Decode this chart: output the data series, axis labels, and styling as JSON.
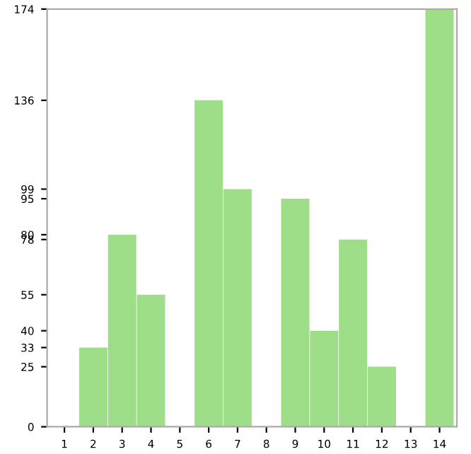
{
  "chart_data": {
    "type": "bar",
    "categories": [
      "1",
      "2",
      "3",
      "4",
      "5",
      "6",
      "7",
      "8",
      "9",
      "10",
      "11",
      "12",
      "13",
      "14"
    ],
    "values": [
      0,
      33,
      80,
      55,
      0,
      136,
      99,
      0,
      95,
      40,
      78,
      25,
      0,
      174
    ],
    "color": "#9ede88",
    "ylim": [
      0,
      174
    ],
    "yticks": [
      0,
      25,
      33,
      40,
      55,
      78,
      80,
      95,
      99,
      136,
      174
    ],
    "grid": false
  }
}
